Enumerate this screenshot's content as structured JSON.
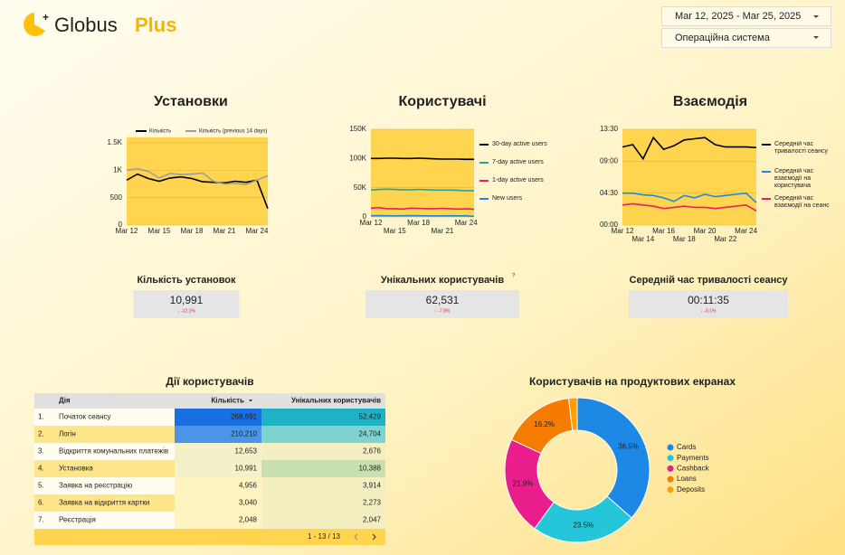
{
  "header": {
    "brand": "Globus",
    "brand_accent": "Plus",
    "date_range": "Mar 12, 2025 - Mar 25, 2025",
    "filter": "Операційна система"
  },
  "chart_data": [
    {
      "type": "line",
      "title": "Установки",
      "legend": "top",
      "categories": [
        "Mar 12",
        null,
        null,
        "Mar 15",
        null,
        null,
        "Mar 18",
        null,
        null,
        "Mar 21",
        null,
        null,
        "Mar 24",
        null
      ],
      "series": [
        {
          "name": "Кількість",
          "color": "#000000",
          "values": [
            820,
            930,
            850,
            800,
            860,
            880,
            850,
            790,
            780,
            770,
            800,
            780,
            820,
            300
          ]
        },
        {
          "name": "Кількість (previous 14 days)",
          "color": "#9e9e9e",
          "values": [
            1000,
            1030,
            980,
            860,
            940,
            920,
            930,
            950,
            800,
            750,
            760,
            740,
            820,
            900
          ]
        }
      ],
      "ylim": [
        0,
        1600
      ],
      "yticks": [
        0,
        500,
        {
          "value": 1000,
          "label": "1K"
        },
        {
          "value": 1500,
          "label": "1.5K"
        }
      ]
    },
    {
      "type": "line",
      "title": "Користувачі",
      "legend": "right",
      "categories": [
        "Mar 12",
        null,
        null,
        "Mar 15",
        null,
        null,
        "Mar 18",
        null,
        null,
        "Mar 21",
        null,
        null,
        "Mar 24",
        null
      ],
      "series": [
        {
          "name": "30-day active users",
          "color": "#000000",
          "values": [
            100000,
            100000,
            100500,
            100500,
            100000,
            100000,
            100500,
            100000,
            99500,
            99000,
            99000,
            99000,
            98500,
            98500
          ]
        },
        {
          "name": "7-day active users",
          "color": "#26a69a",
          "values": [
            46000,
            47000,
            47500,
            47000,
            46500,
            46500,
            47000,
            46500,
            46000,
            46000,
            46000,
            45500,
            45000,
            45000
          ]
        },
        {
          "name": "1-day active users",
          "color": "#e91e63",
          "values": [
            15000,
            16000,
            14000,
            14000,
            13500,
            15000,
            14500,
            14000,
            14000,
            14500,
            14000,
            13500,
            14000,
            13000
          ]
        },
        {
          "name": "New users",
          "color": "#1e88e5",
          "values": [
            2000,
            2200,
            2000,
            1900,
            2000,
            2100,
            2000,
            1900,
            1900,
            1900,
            2000,
            1900,
            2000,
            1000
          ]
        }
      ],
      "ylim": [
        0,
        150000
      ],
      "yticks": [
        0,
        {
          "value": 50000,
          "label": "50K"
        },
        {
          "value": 100000,
          "label": "100K"
        },
        {
          "value": 150000,
          "label": "150K"
        }
      ]
    },
    {
      "type": "line",
      "title": "Взаємодія",
      "legend": "right",
      "categories": [
        "Mar 12",
        null,
        "Mar 14",
        null,
        "Mar 16",
        null,
        "Mar 18",
        null,
        "Mar 20",
        null,
        "Mar 22",
        null,
        "Mar 24",
        null
      ],
      "series": [
        {
          "name": "Середній час тривалості сеансу",
          "color": "#000000",
          "values": [
            660,
            680,
            560,
            740,
            640,
            670,
            720,
            730,
            740,
            680,
            660,
            660,
            660,
            655
          ]
        },
        {
          "name": "Середній час взаємодії на користувача",
          "color": "#1e88e5",
          "values": [
            270,
            270,
            255,
            250,
            230,
            200,
            250,
            230,
            260,
            240,
            250,
            260,
            270,
            190
          ]
        },
        {
          "name": "Середній час взаємодії на сеанс",
          "color": "#e91e63",
          "values": [
            170,
            180,
            170,
            160,
            140,
            150,
            160,
            150,
            150,
            140,
            150,
            160,
            170,
            120
          ]
        }
      ],
      "ylim": [
        0,
        810
      ],
      "yticks": [
        {
          "value": 0,
          "label": "00:00"
        },
        {
          "value": 270,
          "label": "04:30"
        },
        {
          "value": 540,
          "label": "09:00"
        },
        {
          "value": 810,
          "label": "13:30"
        }
      ]
    },
    {
      "type": "donut",
      "title": "Користувачів на продуктових екранах",
      "legend": "right",
      "categories": [
        "Cards",
        "Payments",
        "Cashback",
        "Loans",
        "Deposits"
      ],
      "values": [
        36.5,
        23.5,
        21.9,
        16.2,
        1.9
      ],
      "value_labels": [
        "36.5%",
        "23.5%",
        "21.9%",
        "16.2%",
        null
      ],
      "colors": [
        "#1e88e5",
        "#26c6da",
        "#e91e8c",
        "#f57c00",
        "#ffa000"
      ]
    }
  ],
  "scorecards": [
    {
      "label": "Кількість установок",
      "value": "10,991",
      "change": "↓ -12.1%"
    },
    {
      "label": "Унікальних користувачів",
      "value": "62,531",
      "change": "↓ -7.8%",
      "help": "?"
    },
    {
      "label": "Середній час тривалості сеансу",
      "value": "00:11:35",
      "change": "↓ -0.1%"
    }
  ],
  "table": {
    "title": "Дії користувачів",
    "columns": [
      "Дія",
      "Кількість",
      "Унікальних користувачів"
    ],
    "rows": [
      [
        "1.",
        "Початок сеансу",
        "268,691",
        "52,429"
      ],
      [
        "2.",
        "Логін",
        "210,210",
        "24,704"
      ],
      [
        "3.",
        "Відкриття комунальних платежів",
        "12,653",
        "2,676"
      ],
      [
        "4.",
        "Установка",
        "10,991",
        "10,388"
      ],
      [
        "5.",
        "Заявка на реєстрацію",
        "4,956",
        "3,914"
      ],
      [
        "6.",
        "Заявка на відкриття картки",
        "3,040",
        "2,273"
      ],
      [
        "7.",
        "Реєстрація",
        "2,048",
        "2,047"
      ]
    ],
    "pagination": "1 - 13 / 13"
  }
}
